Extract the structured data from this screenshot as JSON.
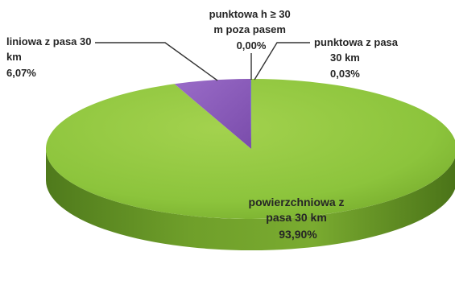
{
  "chart_data": {
    "type": "pie",
    "style": "3d",
    "slices": [
      {
        "label_lines": [
          "powierzchniowa z",
          "pasa 30 km"
        ],
        "value_label": "93,90%",
        "value": 93.9,
        "color": "#8cc43c"
      },
      {
        "label_lines": [
          "liniowa z pasa 30",
          "km"
        ],
        "value_label": "6,07%",
        "value": 6.07,
        "color": "#8a5cb8"
      },
      {
        "label_lines": [
          "punktowa h ≥ 30",
          "m poza pasem"
        ],
        "value_label": "0,00%",
        "value": 0.0,
        "color": "#d94c4c"
      },
      {
        "label_lines": [
          "punktowa z pasa",
          "30 km"
        ],
        "value_label": "0,03%",
        "value": 0.03,
        "color": "#4a8ad4"
      }
    ]
  }
}
